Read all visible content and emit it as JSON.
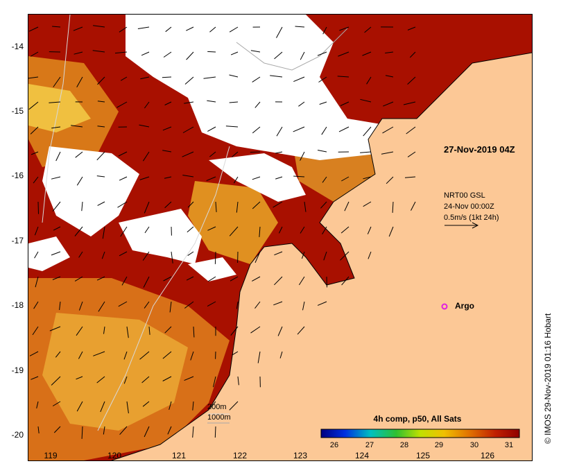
{
  "map": {
    "lat_labels": [
      "-14",
      "-15",
      "-16",
      "-17",
      "-18",
      "-19",
      "-20"
    ],
    "lon_labels": [
      "119",
      "120",
      "121",
      "122",
      "123",
      "124",
      "125",
      "126"
    ],
    "date_label": "27-Nov-2019 04Z",
    "vector_legend": [
      "NRT00 GSL",
      "24-Nov 00:00Z",
      "0.5m/s (1kt 24h)"
    ],
    "argo_label": "Argo",
    "scale_labels": [
      "200m",
      "1000m"
    ],
    "colorbar": {
      "title": "4h comp, p50, All Sats",
      "ticks": [
        "26",
        "27",
        "28",
        "29",
        "30",
        "31"
      ]
    },
    "credit": "© IMOS 29-Nov-2019 01:16 Hobart",
    "colors": {
      "land": "#fcc896",
      "sst_high": "#a81000",
      "sst_mid": "#d86010",
      "sst_low": "#f0b020",
      "argo": "#e020e0"
    }
  }
}
